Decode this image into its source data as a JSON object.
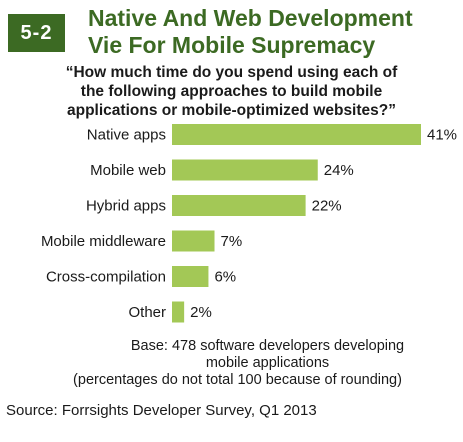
{
  "badge": "5-2",
  "title_line1": "Native And Web Development",
  "title_line2": "Vie For Mobile Supremacy",
  "question_line1": "“How much time do you spend using each of",
  "question_line2": "the following approaches to build mobile",
  "question_line3": "applications or mobile-optimized websites?”",
  "base_line1": "Base: 478 software developers developing",
  "base_line2": "mobile applications",
  "base_line3": "(percentages do not total 100 because of rounding)",
  "source": "Source: Forrsights Developer Survey, Q1 2013",
  "colors": {
    "accent": "#3c6a23",
    "bar": "#a3c856"
  },
  "chart_data": {
    "type": "bar",
    "orientation": "horizontal",
    "categories": [
      "Native apps",
      "Mobile web",
      "Hybrid apps",
      "Mobile middleware",
      "Cross-compilation",
      "Other"
    ],
    "values": [
      41,
      24,
      22,
      7,
      6,
      2
    ],
    "value_labels": [
      "41%",
      "24%",
      "22%",
      "7%",
      "6%",
      "2%"
    ],
    "unit": "%",
    "xlim": [
      0,
      41
    ],
    "grid": false
  }
}
